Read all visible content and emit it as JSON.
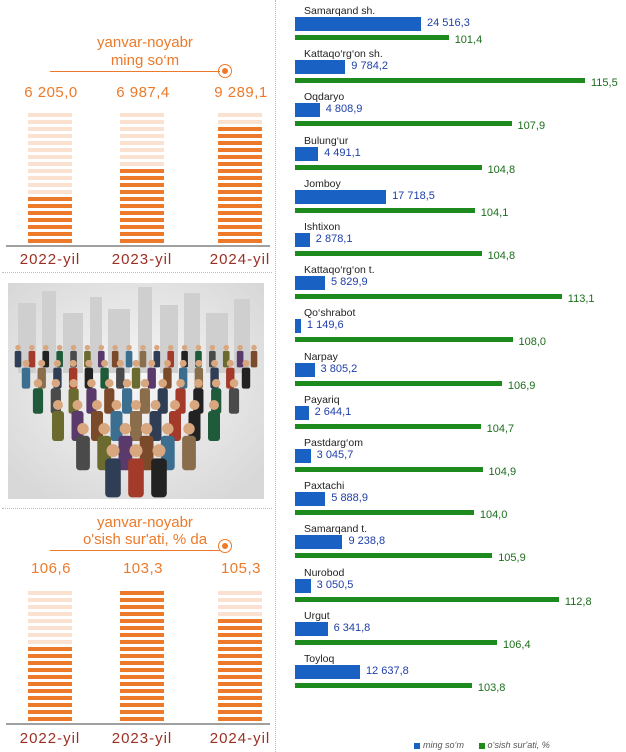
{
  "top_panel": {
    "caption_line1": "yanvar-noyabr",
    "caption_line2": "ming so‘m",
    "bars": [
      {
        "year": "2022-yil",
        "value_label": "6 205,0",
        "value": 6205.0,
        "fill_fraction": 0.38
      },
      {
        "year": "2023-yil",
        "value_label": "6 987,4",
        "value": 6987.4,
        "fill_fraction": 0.57
      },
      {
        "year": "2024-yil",
        "value_label": "9 289,1",
        "value": 9289.1,
        "fill_fraction": 0.9
      }
    ]
  },
  "bottom_panel": {
    "caption_line1": "yanvar-noyabr",
    "caption_line2": "o'sish sur'ati, % da",
    "bars": [
      {
        "year": "2022-yil",
        "value_label": "106,6",
        "value": 106.6,
        "fill_fraction": 0.57
      },
      {
        "year": "2023-yil",
        "value_label": "103,3",
        "value": 103.3,
        "fill_fraction": 1.0
      },
      {
        "year": "2024-yil",
        "value_label": "105,3",
        "value": 105.3,
        "fill_fraction": 0.8
      }
    ]
  },
  "illustration": {
    "icon": "crowd-of-people-image"
  },
  "colors": {
    "orange": "#ec7a2a",
    "orange_light": "#fbe1cf",
    "blue": "#1a61c4",
    "green": "#1c8a1c",
    "year_red": "#9b2f22"
  },
  "chart_data": {
    "type": "bar",
    "orientation": "horizontal",
    "categories": [
      "Samarqand sh.",
      "Kattaqo‘rg‘on sh.",
      "Oqdaryo",
      "Bulung‘ur",
      "Jomboy",
      "Ishtixon",
      "Kattaqo‘rg‘on t.",
      "Qo‘shrabot",
      "Narpay",
      "Payariq",
      "Pastdarg‘om",
      "Paxtachi",
      "Samarqand t.",
      "Nurobod",
      "Urgut",
      "Toyloq"
    ],
    "series": [
      {
        "name": "ming so‘m",
        "values": [
          24516.3,
          9784.2,
          4808.9,
          4491.1,
          17718.5,
          2878.1,
          5829.9,
          1149.6,
          3805.2,
          2644.1,
          3045.7,
          5888.9,
          9238.8,
          3050.5,
          6341.8,
          12637.8
        ],
        "labels": [
          "24 516,3",
          "9 784,2",
          "4 808,9",
          "4 491,1",
          "17 718,5",
          "2 878,1",
          "5 829,9",
          "1 149,6",
          "3 805,2",
          "2 644,1",
          "3 045,7",
          "5 888,9",
          "9 238,8",
          "3 050,5",
          "6 341,8",
          "12 637,8"
        ]
      },
      {
        "name": "o‘sish sur'ati, %",
        "values": [
          101.4,
          115.5,
          107.9,
          104.8,
          104.1,
          104.8,
          113.1,
          108.0,
          106.9,
          104.7,
          104.9,
          104.0,
          105.9,
          112.8,
          106.4,
          103.8
        ],
        "labels": [
          "101,4",
          "115,5",
          "107,9",
          "104,8",
          "104,1",
          "104,8",
          "113,1",
          "108,0",
          "106,9",
          "104,7",
          "104,9",
          "104,0",
          "105,9",
          "112,8",
          "106,4",
          "103,8"
        ]
      }
    ],
    "legend": {
      "position": "bottom-right"
    }
  }
}
